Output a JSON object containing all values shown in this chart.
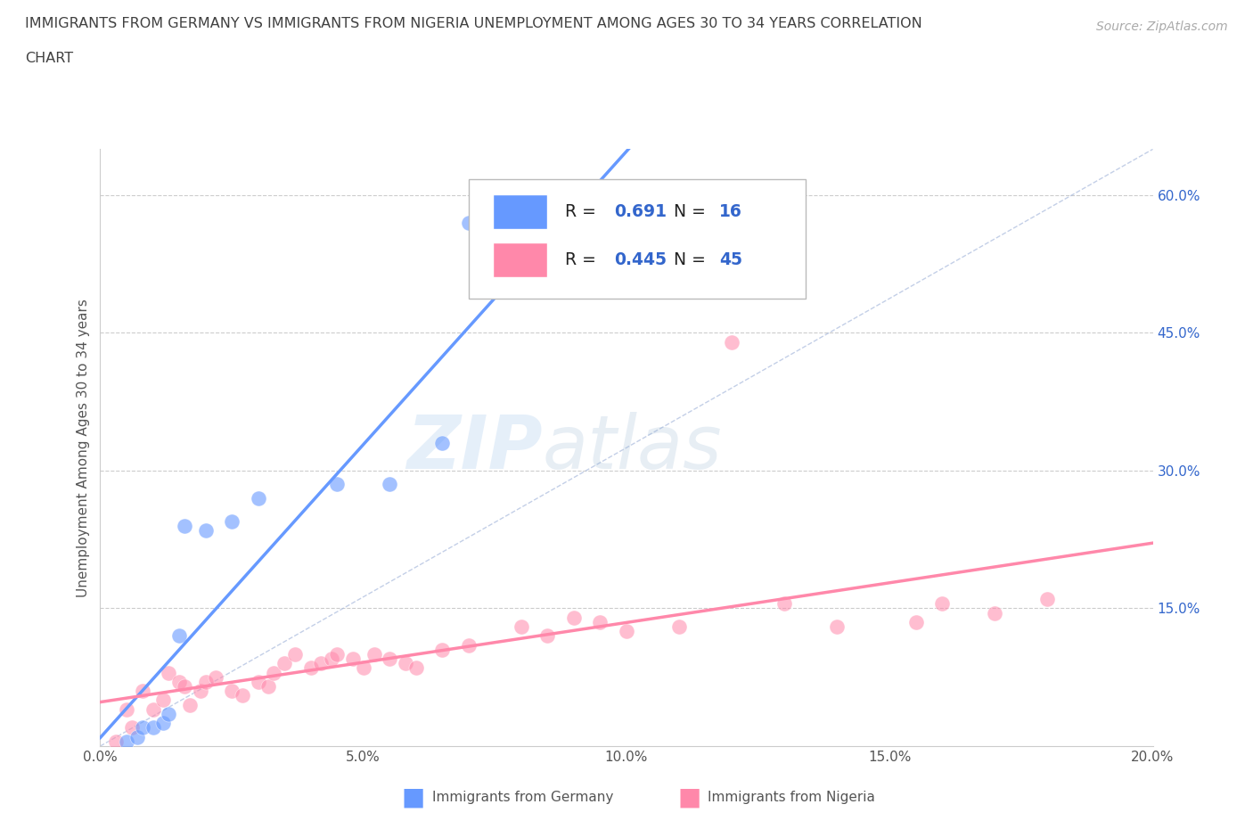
{
  "title_line1": "IMMIGRANTS FROM GERMANY VS IMMIGRANTS FROM NIGERIA UNEMPLOYMENT AMONG AGES 30 TO 34 YEARS CORRELATION",
  "title_line2": "CHART",
  "source_text": "Source: ZipAtlas.com",
  "ylabel": "Unemployment Among Ages 30 to 34 years",
  "xlim": [
    0.0,
    0.2
  ],
  "ylim": [
    0.0,
    0.65
  ],
  "xtick_labels": [
    "0.0%",
    "5.0%",
    "10.0%",
    "15.0%",
    "20.0%"
  ],
  "xtick_vals": [
    0.0,
    0.05,
    0.1,
    0.15,
    0.2
  ],
  "ytick_labels": [
    "15.0%",
    "30.0%",
    "45.0%",
    "60.0%"
  ],
  "ytick_vals": [
    0.15,
    0.3,
    0.45,
    0.6
  ],
  "germany_color": "#6699ff",
  "nigeria_color": "#ff88aa",
  "germany_R": 0.691,
  "germany_N": 16,
  "nigeria_R": 0.445,
  "nigeria_N": 45,
  "legend_label_germany": "Immigrants from Germany",
  "legend_label_nigeria": "Immigrants from Nigeria",
  "watermark_zip": "ZIP",
  "watermark_atlas": "atlas",
  "background_color": "#ffffff",
  "grid_color": "#cccccc",
  "title_color": "#404040",
  "axis_label_color": "#555555",
  "tick_color": "#3366cc",
  "r_value_color": "#3366cc",
  "legend_r_label_color": "#222222",
  "germany_x": [
    0.005,
    0.007,
    0.008,
    0.01,
    0.012,
    0.013,
    0.015,
    0.016,
    0.02,
    0.025,
    0.03,
    0.045,
    0.055,
    0.065,
    0.07,
    0.09
  ],
  "germany_y": [
    0.005,
    0.01,
    0.02,
    0.02,
    0.025,
    0.035,
    0.12,
    0.24,
    0.235,
    0.245,
    0.27,
    0.285,
    0.285,
    0.33,
    0.57,
    0.555
  ],
  "nigeria_x": [
    0.003,
    0.005,
    0.006,
    0.008,
    0.01,
    0.012,
    0.013,
    0.015,
    0.016,
    0.017,
    0.019,
    0.02,
    0.022,
    0.025,
    0.027,
    0.03,
    0.032,
    0.033,
    0.035,
    0.037,
    0.04,
    0.042,
    0.044,
    0.045,
    0.048,
    0.05,
    0.052,
    0.055,
    0.058,
    0.06,
    0.065,
    0.07,
    0.08,
    0.085,
    0.09,
    0.095,
    0.1,
    0.11,
    0.12,
    0.13,
    0.14,
    0.155,
    0.16,
    0.17,
    0.18
  ],
  "nigeria_y": [
    0.005,
    0.04,
    0.02,
    0.06,
    0.04,
    0.05,
    0.08,
    0.07,
    0.065,
    0.045,
    0.06,
    0.07,
    0.075,
    0.06,
    0.055,
    0.07,
    0.065,
    0.08,
    0.09,
    0.1,
    0.085,
    0.09,
    0.095,
    0.1,
    0.095,
    0.085,
    0.1,
    0.095,
    0.09,
    0.085,
    0.105,
    0.11,
    0.13,
    0.12,
    0.14,
    0.135,
    0.125,
    0.13,
    0.44,
    0.155,
    0.13,
    0.135,
    0.155,
    0.145,
    0.16
  ],
  "diag_line_color": "#aabbdd"
}
